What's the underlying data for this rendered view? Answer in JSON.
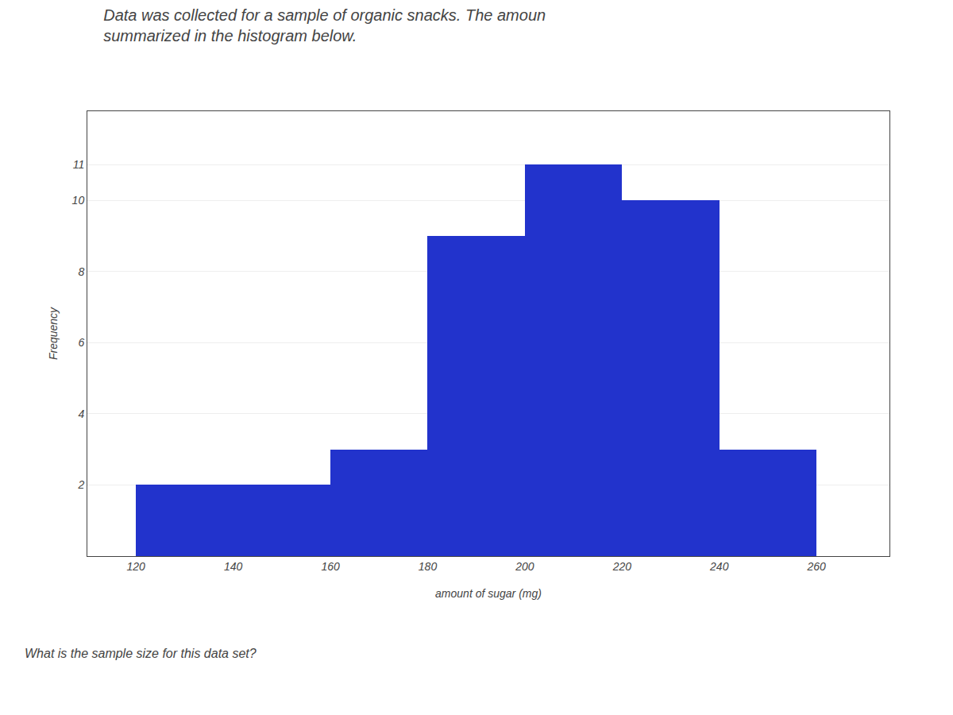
{
  "chart_data": {
    "type": "histogram",
    "title": "Data was collected for a sample of organic snacks. The amoun\nsummarized in the histogram below.",
    "bins": [
      120,
      140,
      160,
      180,
      200,
      220,
      240,
      260
    ],
    "values": [
      2,
      2,
      3,
      9,
      11,
      10,
      3
    ],
    "color": "#2233cc",
    "x_label": "amount of sugar (mg)",
    "y_label": "Frequency",
    "xlim": [
      110,
      275
    ],
    "xticks": [
      120,
      140,
      160,
      180,
      200,
      220,
      240,
      260
    ],
    "ylim": [
      0,
      12.5
    ],
    "yticks": [
      2,
      4,
      6,
      8,
      10,
      11
    ],
    "grid": "y",
    "annotations": [
      "What is the sample size for this data set?"
    ]
  }
}
